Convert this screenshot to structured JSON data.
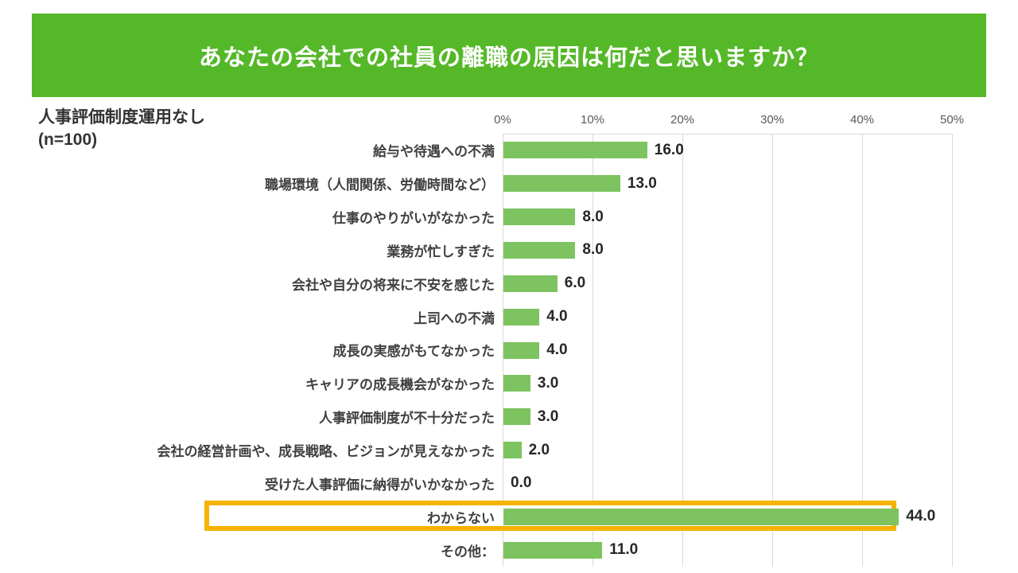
{
  "header": {
    "title": "あなたの会社での社員の離職の原因は何だと思いますか？",
    "bg_color": "#55B829",
    "text_color": "#FFFFFF"
  },
  "chart_heading": {
    "line1": "人事評価制度運用なし",
    "line2": "(n=100)"
  },
  "chart_data": {
    "type": "bar",
    "orientation": "horizontal",
    "title": "あなたの会社での社員の離職の原因は何だと思いますか？",
    "group_label": "人事評価制度運用なし (n=100)",
    "categories": [
      "給与や待遇への不満",
      "職場環境（人間関係、労働時間など）",
      "仕事のやりがいがなかった",
      "業務が忙しすぎた",
      "会社や自分の将来に不安を感じた",
      "上司への不満",
      "成長の実感がもてなかった",
      "キャリアの成長機会がなかった",
      "人事評価制度が不十分だった",
      "会社の経営計画や、成長戦略、ビジョンが見えなかった",
      "受けた人事評価に納得がいかなかった",
      "わからない",
      "その他："
    ],
    "values": [
      16.0,
      13.0,
      8.0,
      8.0,
      6.0,
      4.0,
      4.0,
      3.0,
      3.0,
      2.0,
      0.0,
      44.0,
      11.0
    ],
    "axis": {
      "ticks": [
        "0%",
        "10%",
        "20%",
        "30%",
        "40%",
        "50%"
      ],
      "min": 0,
      "max": 50,
      "position": "top",
      "grid": true
    },
    "bar_color": "#7DC35F",
    "grid_color": "#D9D9D9",
    "highlight": {
      "index": 11,
      "category": "わからない",
      "color": "#F5B301"
    }
  }
}
